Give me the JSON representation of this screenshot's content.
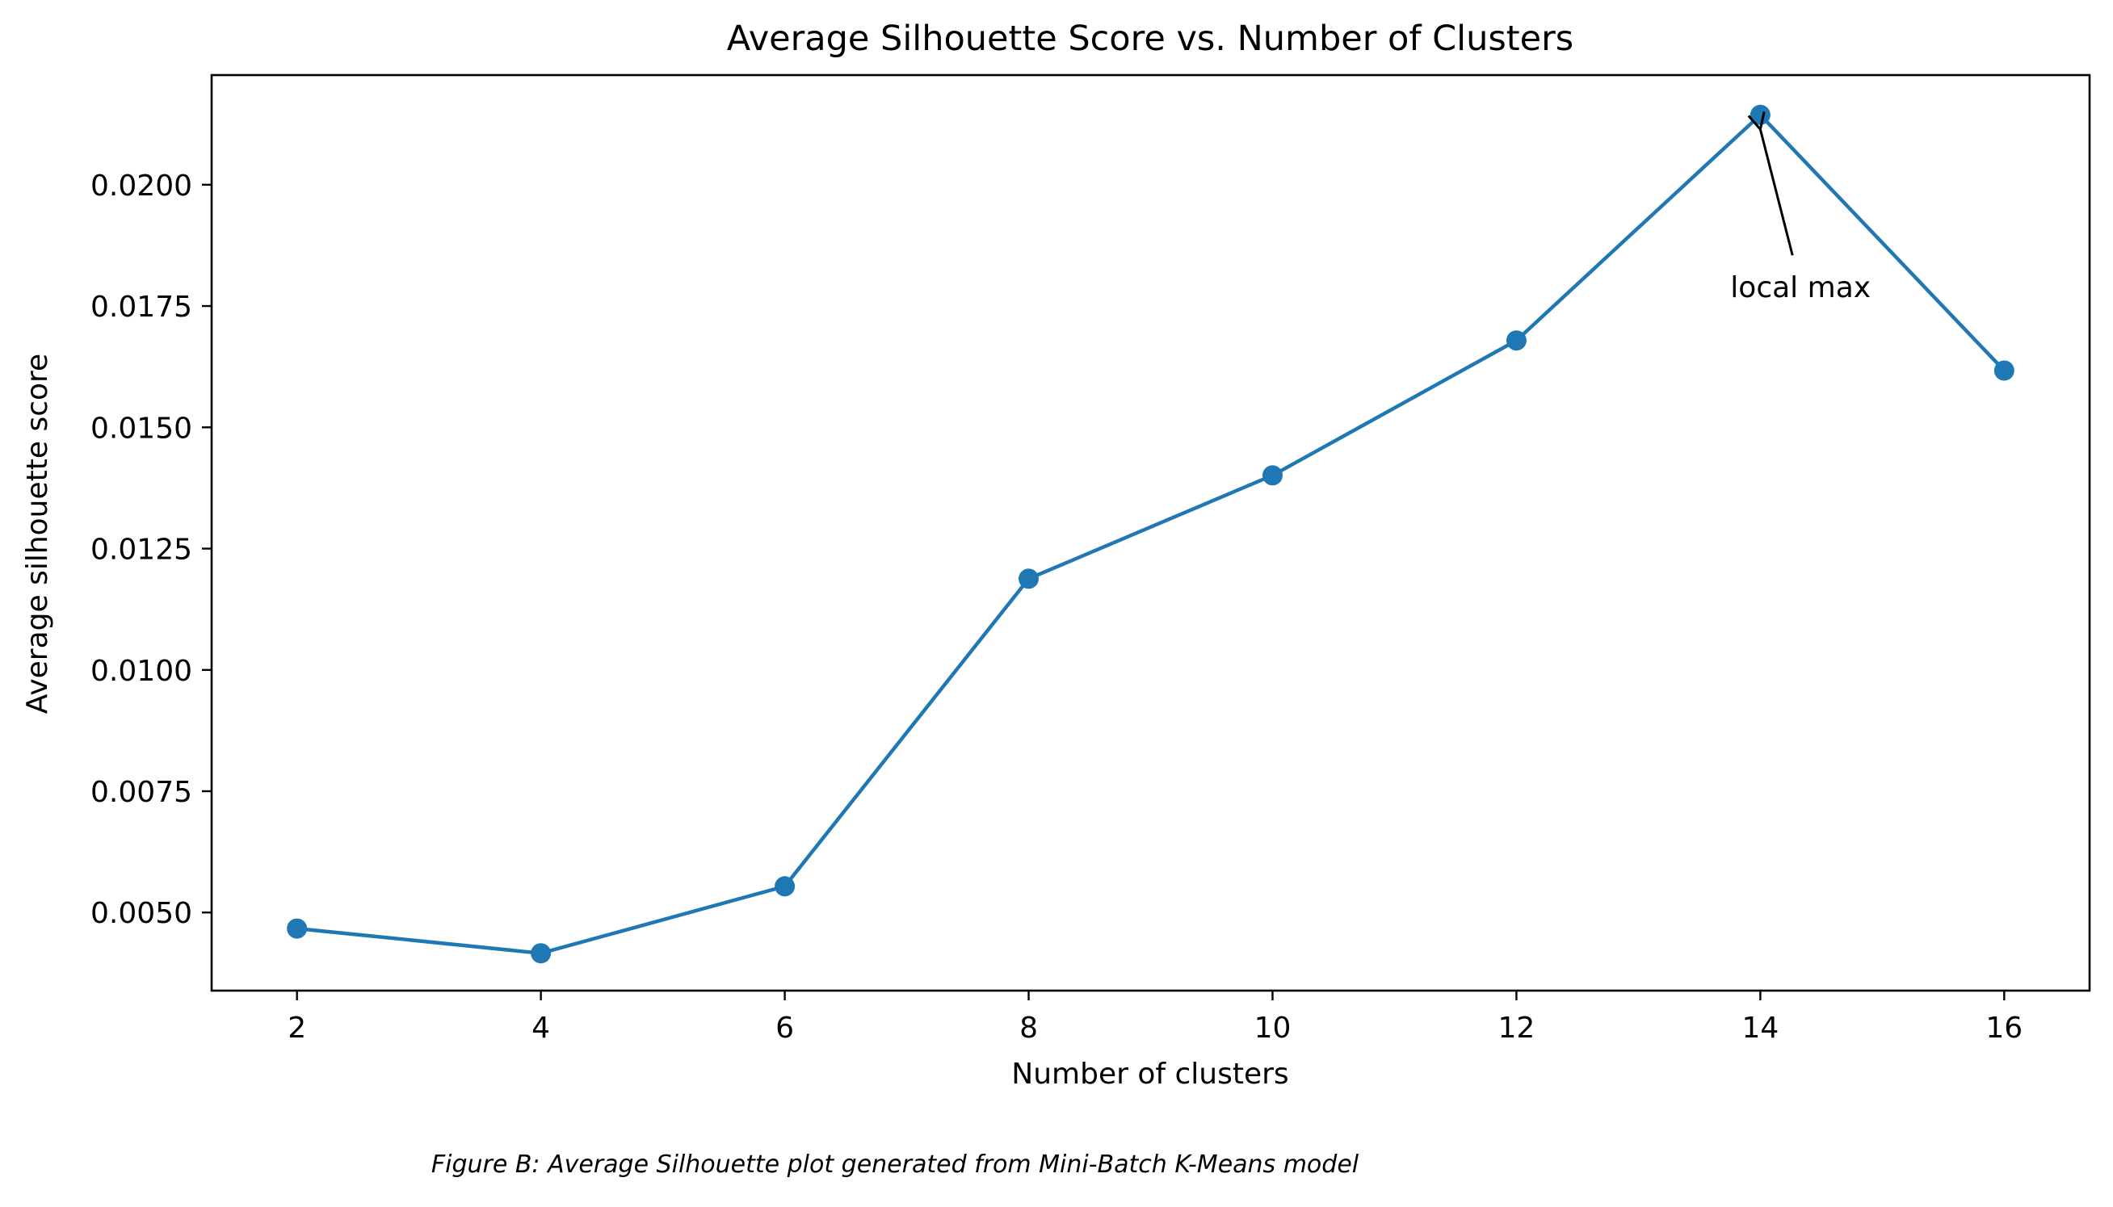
{
  "chart_data": {
    "type": "line",
    "title": "Average Silhouette Score vs. Number of Clusters",
    "xlabel": "Number of clusters",
    "ylabel": "Average silhouette score",
    "x": [
      2,
      4,
      6,
      8,
      10,
      12,
      14,
      16
    ],
    "series": [
      {
        "values": [
          0.00467,
          0.00416,
          0.00554,
          0.01188,
          0.01401,
          0.01679,
          0.02144,
          0.01617
        ],
        "color": "#1f77b4",
        "marker": "circle"
      }
    ],
    "xlim": [
      1.3,
      16.7
    ],
    "ylim": [
      0.00339,
      0.02226
    ],
    "xticks": [
      2,
      4,
      6,
      8,
      10,
      12,
      14,
      16
    ],
    "xtick_labels": [
      "2",
      "4",
      "6",
      "8",
      "10",
      "12",
      "14",
      "16"
    ],
    "yticks": [
      0.005,
      0.0075,
      0.01,
      0.0125,
      0.015,
      0.0175,
      0.02
    ],
    "ytick_labels": [
      "0.0050",
      "0.0075",
      "0.0100",
      "0.0125",
      "0.0150",
      "0.0175",
      "0.0200"
    ],
    "grid": false,
    "legend": "none",
    "annotations": [
      {
        "text": "local max",
        "target_x": 14,
        "target_y": 0.02144,
        "text_x": 14.33,
        "text_y": 0.01768
      }
    ]
  },
  "caption": "Figure B: Average Silhouette plot generated from Mini-Batch K-Means model"
}
